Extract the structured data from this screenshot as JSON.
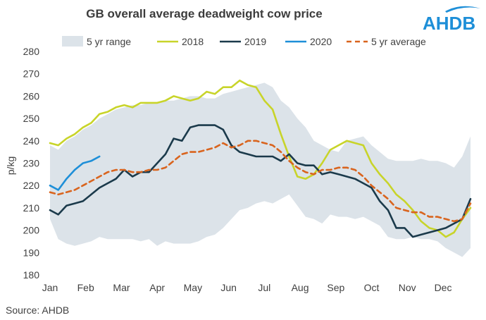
{
  "title": "GB overall average deadweight cow price",
  "source": "Source: AHDB",
  "logo": {
    "text": "AHDB",
    "color": "#1e8fd8",
    "icon": "ahdb-logo"
  },
  "chart_data": {
    "type": "line",
    "ylabel": "p/kg",
    "ylim": [
      180,
      280
    ],
    "yticks": [
      180,
      190,
      200,
      210,
      220,
      230,
      240,
      250,
      260,
      270,
      280
    ],
    "xlim": [
      1,
      52
    ],
    "month_labels": [
      "Jan",
      "Feb",
      "Mar",
      "Apr",
      "May",
      "Jun",
      "Jul",
      "Aug",
      "Sep",
      "Oct",
      "Nov",
      "Dec"
    ],
    "month_positions": [
      1,
      5.33,
      9.67,
      14,
      18.33,
      22.67,
      27,
      31.33,
      35.67,
      40,
      44.33,
      48.67
    ],
    "grid": false,
    "legend": "top",
    "range": {
      "name": "5 yr range",
      "color": "#dce3e9",
      "weeks": [
        1,
        2,
        3,
        4,
        5,
        6,
        7,
        8,
        9,
        10,
        11,
        12,
        13,
        14,
        15,
        16,
        17,
        18,
        19,
        20,
        21,
        22,
        23,
        24,
        25,
        26,
        27,
        28,
        29,
        30,
        31,
        32,
        33,
        34,
        35,
        36,
        37,
        38,
        39,
        40,
        41,
        42,
        43,
        44,
        45,
        46,
        47,
        48,
        49,
        50,
        51,
        52
      ],
      "upper": [
        238,
        236,
        240,
        242,
        245,
        247,
        250,
        252,
        254,
        255,
        256,
        256,
        257,
        257,
        258,
        258,
        259,
        260,
        260,
        259,
        259,
        261,
        262,
        263,
        264,
        265,
        266,
        264,
        258,
        255,
        250,
        246,
        240,
        238,
        236,
        235,
        240,
        241,
        242,
        238,
        235,
        232,
        231,
        231,
        231,
        232,
        231,
        231,
        230,
        228,
        233,
        242
      ],
      "lower": [
        205,
        196,
        194,
        193,
        194,
        195,
        197,
        196,
        196,
        196,
        196,
        195,
        196,
        193,
        195,
        194,
        194,
        194,
        195,
        197,
        198,
        201,
        205,
        209,
        210,
        212,
        213,
        212,
        214,
        216,
        211,
        206,
        205,
        203,
        207,
        206,
        206,
        205,
        206,
        204,
        202,
        197,
        196,
        196,
        197,
        196,
        196,
        195,
        192,
        190,
        188,
        192
      ]
    },
    "series": [
      {
        "name": "2018",
        "color": "#c8d42a",
        "dashed": false,
        "x": [
          1,
          2,
          3,
          4,
          5,
          6,
          7,
          8,
          9,
          10,
          11,
          12,
          13,
          14,
          15,
          16,
          17,
          18,
          19,
          20,
          21,
          22,
          23,
          24,
          25,
          26,
          27,
          28,
          29,
          30,
          31,
          32,
          33,
          34,
          35,
          36,
          37,
          38,
          39,
          40,
          41,
          42,
          43,
          44,
          45,
          46,
          47,
          48,
          49,
          50,
          51,
          52
        ],
        "y": [
          239,
          238,
          241,
          243,
          246,
          248,
          252,
          253,
          255,
          256,
          255,
          257,
          257,
          257,
          258,
          260,
          259,
          258,
          259,
          262,
          261,
          264,
          264,
          267,
          265,
          264,
          258,
          254,
          243,
          233,
          224,
          223,
          225,
          230,
          236,
          238,
          240,
          239,
          238,
          230,
          225,
          221,
          216,
          213,
          209,
          204,
          201,
          200,
          197,
          199,
          205,
          210
        ]
      },
      {
        "name": "2019",
        "color": "#1b3a4b",
        "dashed": false,
        "x": [
          1,
          2,
          3,
          4,
          5,
          6,
          7,
          8,
          9,
          10,
          11,
          12,
          13,
          14,
          15,
          16,
          17,
          18,
          19,
          20,
          21,
          22,
          23,
          24,
          25,
          26,
          27,
          28,
          29,
          30,
          31,
          32,
          33,
          34,
          35,
          36,
          37,
          38,
          39,
          40,
          41,
          42,
          43,
          44,
          45,
          46,
          47,
          48,
          49,
          50,
          51,
          52
        ],
        "y": [
          209,
          207,
          211,
          212,
          213,
          216,
          219,
          221,
          223,
          227,
          224,
          226,
          226,
          230,
          234,
          241,
          240,
          246,
          247,
          247,
          247,
          245,
          238,
          235,
          234,
          233,
          233,
          233,
          231,
          234,
          230,
          229,
          229,
          225,
          226,
          225,
          224,
          223,
          221,
          219,
          213,
          209,
          201,
          201,
          197,
          198,
          199,
          200,
          201,
          203,
          205,
          214
        ]
      },
      {
        "name": "2020",
        "color": "#1e8fd8",
        "dashed": false,
        "x": [
          1,
          2,
          3,
          4,
          5,
          6,
          7
        ],
        "y": [
          220,
          218,
          223,
          227,
          230,
          231,
          233
        ]
      },
      {
        "name": "5 yr average",
        "color": "#d9641e",
        "dashed": true,
        "x": [
          1,
          2,
          3,
          4,
          5,
          6,
          7,
          8,
          9,
          10,
          11,
          12,
          13,
          14,
          15,
          16,
          17,
          18,
          19,
          20,
          21,
          22,
          23,
          24,
          25,
          26,
          27,
          28,
          29,
          30,
          31,
          32,
          33,
          34,
          35,
          36,
          37,
          38,
          39,
          40,
          41,
          42,
          43,
          44,
          45,
          46,
          47,
          48,
          49,
          50,
          51,
          52
        ],
        "y": [
          217,
          216,
          217,
          218,
          220,
          222,
          224,
          226,
          227,
          227,
          226,
          226,
          227,
          227,
          228,
          231,
          234,
          235,
          235,
          236,
          237,
          239,
          237,
          238,
          240,
          240,
          239,
          238,
          235,
          231,
          228,
          226,
          225,
          227,
          227,
          228,
          228,
          227,
          224,
          220,
          217,
          214,
          210,
          209,
          208,
          208,
          206,
          206,
          205,
          204,
          205,
          212
        ]
      }
    ]
  }
}
